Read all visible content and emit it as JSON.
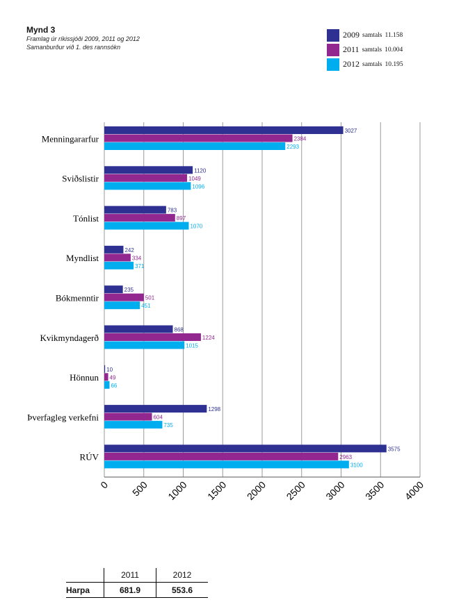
{
  "header": {
    "title": "Mynd 3",
    "subtitle1": "Framlag úr ríkissjóði 2009, 2011 og 2012",
    "subtitle2": "Samanburður við 1. des rannsókn"
  },
  "legend": [
    {
      "year": "2009",
      "label": "samtals",
      "total": "11.158",
      "color": "#2e3192"
    },
    {
      "year": "2011",
      "label": "samtals",
      "total": "10.004",
      "color": "#92278f"
    },
    {
      "year": "2012",
      "label": "samtals",
      "total": "10.195",
      "color": "#00aeef"
    }
  ],
  "chart_data": {
    "type": "bar",
    "orientation": "horizontal",
    "categories": [
      "Menningararfur",
      "Sviðslistir",
      "Tónlist",
      "Myndlist",
      "Bókmenntir",
      "Kvikmyndagerð",
      "Hönnun",
      "Þverfagleg verkefni",
      "RÚV"
    ],
    "series": [
      {
        "name": "2009",
        "color": "#2e3192",
        "values": [
          3027,
          1120,
          783,
          242,
          235,
          868,
          10,
          1298,
          3575
        ]
      },
      {
        "name": "2011",
        "color": "#92278f",
        "values": [
          2384,
          1049,
          897,
          334,
          501,
          1224,
          49,
          604,
          2963
        ]
      },
      {
        "name": "2012",
        "color": "#00aeef",
        "values": [
          2293,
          1096,
          1070,
          371,
          451,
          1015,
          66,
          735,
          3100
        ]
      }
    ],
    "xlim": [
      0,
      4000
    ],
    "xticks": [
      0,
      500,
      1000,
      1500,
      2000,
      2500,
      3000,
      3500,
      4000
    ],
    "grid": true
  },
  "harpa_table": {
    "headers": [
      "2011",
      "2012"
    ],
    "row_label": "Harpa",
    "values": [
      "681.9",
      "553.6"
    ]
  }
}
